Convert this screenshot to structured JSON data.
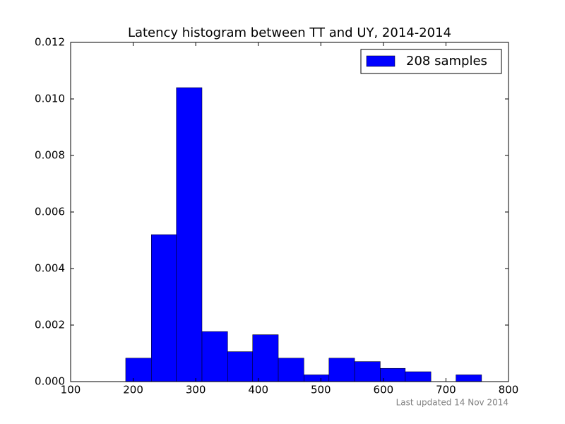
{
  "chart_data": {
    "type": "histogram",
    "title": "Latency histogram between TT and UY, 2014-2014",
    "bins": [
      188,
      229,
      269,
      310,
      351,
      391,
      432,
      473,
      513,
      554,
      595,
      635,
      676,
      716,
      757
    ],
    "series": [
      {
        "name": "208 samples",
        "color": "#0000ff",
        "values": [
          0.00083,
          0.0052,
          0.0104,
          0.00177,
          0.00106,
          0.00166,
          0.00083,
          0.00024,
          0.00083,
          0.00071,
          0.00047,
          0.00035,
          0,
          0.00024
        ]
      }
    ],
    "xlim": [
      100,
      800
    ],
    "ylim": [
      0,
      0.012
    ],
    "xticks": [
      100,
      200,
      300,
      400,
      500,
      600,
      700,
      800
    ],
    "yticks": [
      {
        "value": 0,
        "label": "0.000"
      },
      {
        "value": 0.002,
        "label": "0.002"
      },
      {
        "value": 0.004,
        "label": "0.004"
      },
      {
        "value": 0.006,
        "label": "0.006"
      },
      {
        "value": 0.008,
        "label": "0.008"
      },
      {
        "value": 0.01,
        "label": "0.010"
      },
      {
        "value": 0.012,
        "label": "0.012"
      }
    ],
    "legend": "upper right",
    "footnote": "Last updated 14 Nov 2014"
  }
}
